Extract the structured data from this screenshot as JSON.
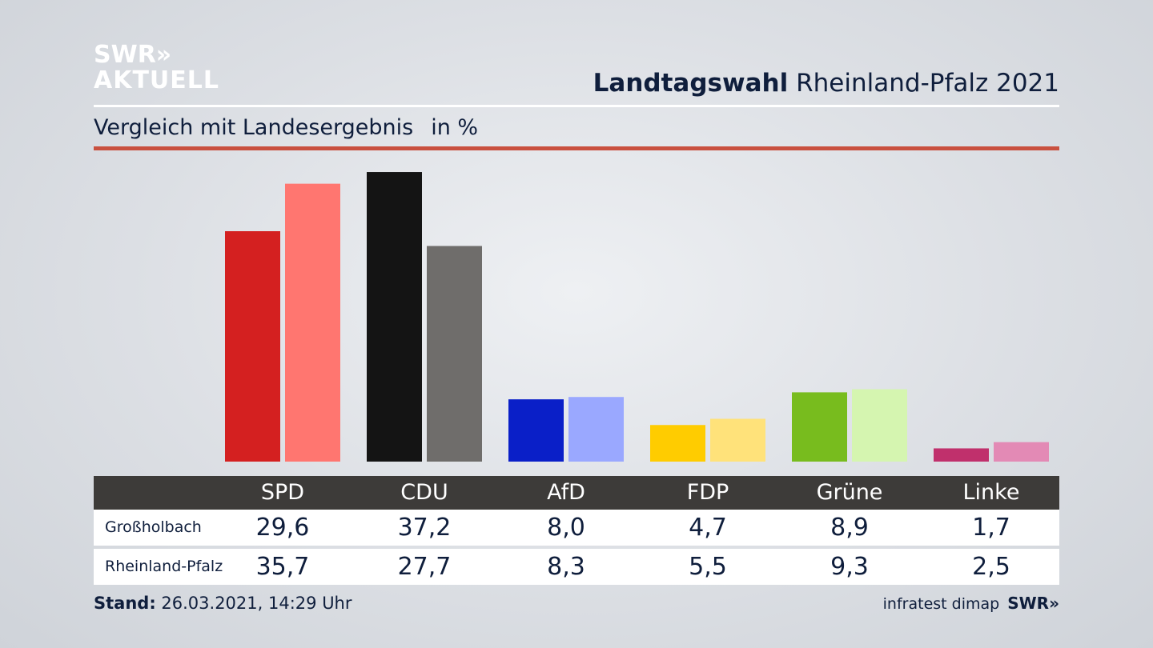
{
  "brand": {
    "logo_line1": "SWR»",
    "logo_line2": "AKTUELL",
    "footer_logo": "SWR»"
  },
  "header": {
    "title_bold": "Landtagswahl",
    "title_rest": "Rheinland-Pfalz 2021"
  },
  "subheader": {
    "text": "Vergleich mit Landesergebnis",
    "unit": "in %"
  },
  "footer": {
    "stand_label": "Stand:",
    "stand_value": "26.03.2021, 14:29 Uhr",
    "source": "infratest dimap"
  },
  "colors": {
    "header_bg": "#3d3b39",
    "accent_rule": "#c9503f",
    "SPD": [
      "#d42020",
      "#ff7670"
    ],
    "CDU": [
      "#141414",
      "#6f6d6b"
    ],
    "AfD": [
      "#0a1fc8",
      "#9aa8ff"
    ],
    "FDP": [
      "#ffcc00",
      "#ffe27a"
    ],
    "Grüne": [
      "#78bc1e",
      "#d5f5b0"
    ],
    "Linke": [
      "#c0306c",
      "#e38ab5"
    ]
  },
  "chart_data": {
    "type": "bar",
    "categories": [
      "SPD",
      "CDU",
      "AfD",
      "FDP",
      "Grüne",
      "Linke"
    ],
    "series": [
      {
        "name": "Großholbach",
        "values": [
          29.6,
          37.2,
          8.0,
          4.7,
          8.9,
          1.7
        ]
      },
      {
        "name": "Rheinland-Pfalz",
        "values": [
          35.7,
          27.7,
          8.3,
          5.5,
          9.3,
          2.5
        ]
      }
    ],
    "display_values": [
      [
        "29,6",
        "37,2",
        "8,0",
        "4,7",
        "8,9",
        "1,7"
      ],
      [
        "35,7",
        "27,7",
        "8,3",
        "5,5",
        "9,3",
        "2,5"
      ]
    ],
    "ylabel": "in %",
    "grid": false,
    "legend": "table below chart"
  }
}
